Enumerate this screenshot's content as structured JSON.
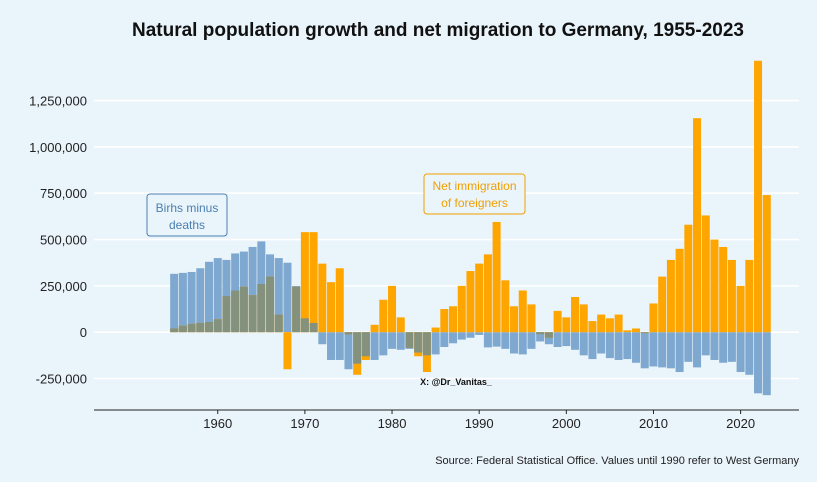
{
  "chart_data": {
    "type": "bar",
    "title": "Natural population growth and net migration to Germany, 1955-2023",
    "xlabel": "",
    "ylabel": "",
    "ylim": [
      -420000,
      1550000
    ],
    "xlim": [
      1945.8,
      2026.7
    ],
    "yticks": [
      -250000,
      0,
      250000,
      500000,
      750000,
      1000000,
      1250000
    ],
    "ytick_labels": [
      "-250,000",
      "0",
      "250,000",
      "500,000",
      "750,000",
      "1,000,000",
      "1,250,000"
    ],
    "xticks": [
      1960,
      1970,
      1980,
      1990,
      2000,
      2010,
      2020
    ],
    "xtick_labels": [
      "1960",
      "1970",
      "1980",
      "1990",
      "2000",
      "2010",
      "2020"
    ],
    "grid": true,
    "years": [
      1955,
      1956,
      1957,
      1958,
      1959,
      1960,
      1961,
      1962,
      1963,
      1964,
      1965,
      1966,
      1967,
      1968,
      1969,
      1970,
      1971,
      1972,
      1973,
      1974,
      1975,
      1976,
      1977,
      1978,
      1979,
      1980,
      1981,
      1982,
      1983,
      1984,
      1985,
      1986,
      1987,
      1988,
      1989,
      1990,
      1991,
      1992,
      1993,
      1994,
      1995,
      1996,
      1997,
      1998,
      1999,
      2000,
      2001,
      2002,
      2003,
      2004,
      2005,
      2006,
      2007,
      2008,
      2009,
      2010,
      2011,
      2012,
      2013,
      2014,
      2015,
      2016,
      2017,
      2018,
      2019,
      2020,
      2021,
      2022,
      2023
    ],
    "series": [
      {
        "name": "Births minus deaths",
        "color": "#7ea8cf",
        "values": [
          315000,
          320000,
          325000,
          345000,
          380000,
          400000,
          390000,
          425000,
          435000,
          460000,
          490000,
          420000,
          400000,
          375000,
          250000,
          75000,
          50000,
          -65000,
          -150000,
          -150000,
          -200000,
          -170000,
          -130000,
          -150000,
          -125000,
          -90000,
          -95000,
          -90000,
          -110000,
          -125000,
          -120000,
          -80000,
          -60000,
          -40000,
          -30000,
          -15000,
          -82000,
          -78000,
          -90000,
          -115000,
          -120000,
          -90000,
          -50000,
          -65000,
          -80000,
          -75000,
          -95000,
          -125000,
          -145000,
          -115000,
          -140000,
          -150000,
          -145000,
          -165000,
          -195000,
          -185000,
          -190000,
          -195000,
          -215000,
          -160000,
          -190000,
          -125000,
          -150000,
          -165000,
          -160000,
          -215000,
          -230000,
          -330000,
          -340000
        ]
      },
      {
        "name": "Net immigration of foreigners",
        "color": "#ffa500",
        "values": [
          20000,
          35000,
          45000,
          50000,
          55000,
          70000,
          195000,
          225000,
          245000,
          200000,
          260000,
          300000,
          95000,
          -200000,
          245000,
          540000,
          540000,
          370000,
          270000,
          345000,
          -12000,
          -230000,
          -150000,
          40000,
          175000,
          250000,
          80000,
          -85000,
          -130000,
          -215000,
          25000,
          125000,
          140000,
          250000,
          330000,
          370000,
          420000,
          595000,
          280000,
          140000,
          225000,
          150000,
          -10000,
          -30000,
          115000,
          80000,
          190000,
          150000,
          60000,
          95000,
          75000,
          95000,
          10000,
          20000,
          -5000,
          155000,
          300000,
          390000,
          450000,
          580000,
          1155000,
          630000,
          500000,
          460000,
          390000,
          250000,
          390000,
          1465000,
          740000
        ]
      }
    ],
    "overlap_color": "#84927d",
    "annotations": [
      {
        "text_lines": [
          "Birhs minus",
          "deaths"
        ],
        "color": "#4a7fb0"
      },
      {
        "text_lines": [
          "Net immigration",
          "of foreigners"
        ],
        "color": "#f0a000"
      }
    ],
    "credit": "X: @Dr_Vanitas_",
    "source": "Source: Federal Statistical Office. Values until 1990 refer to West Germany"
  }
}
